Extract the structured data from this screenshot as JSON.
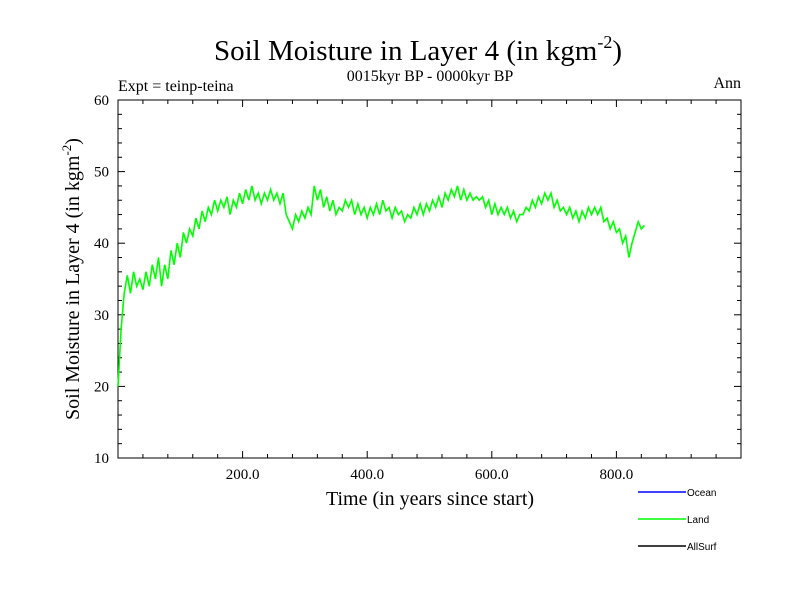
{
  "chart_data": {
    "type": "line",
    "title": "Soil Moisture in Layer 4 (in kgm",
    "title_exponent": "-2",
    "title_close": ")",
    "subtitle": "0015kyr BP - 0000kyr BP",
    "experiment_label": "Expt = teinp-teina",
    "season_label": "Ann",
    "xlabel": "Time (in years since start)",
    "ylabel": "Soil Moisture in Layer 4 (in kgm",
    "ylabel_exponent": "-2",
    "ylabel_close": ")",
    "xlim": [
      0,
      1000
    ],
    "ylim": [
      10,
      60
    ],
    "x_ticks": [
      200,
      400,
      600,
      800
    ],
    "x_tick_labels": [
      "200.0",
      "400.0",
      "600.0",
      "800.0"
    ],
    "y_ticks": [
      10,
      20,
      30,
      40,
      50,
      60
    ],
    "y_tick_labels": [
      "10",
      "20",
      "30",
      "40",
      "50",
      "60"
    ],
    "grid": false,
    "legend_position": "bottom-right",
    "legend": [
      {
        "name": "Ocean",
        "color": "#0000ff"
      },
      {
        "name": "Land",
        "color": "#00ff00"
      },
      {
        "name": "AllSurf",
        "color": "#000000"
      }
    ],
    "series": [
      {
        "name": "Land",
        "color": "#00ff00",
        "x_start": 0,
        "x_step": 5,
        "values": [
          20,
          28,
          33,
          35.5,
          33,
          36,
          34,
          35,
          33.5,
          36,
          34,
          37,
          35,
          38,
          34,
          37,
          35,
          39,
          37,
          40,
          38,
          41.5,
          40,
          42,
          41,
          43.5,
          42,
          44.5,
          43,
          45,
          44,
          46,
          44.5,
          46,
          45,
          46.5,
          44,
          46,
          45,
          47,
          45.5,
          47.5,
          46,
          48,
          46,
          47,
          45.5,
          47,
          46,
          47.5,
          46,
          47,
          45.5,
          47,
          44,
          43,
          42,
          44,
          43,
          44.5,
          43.5,
          45,
          44,
          48,
          46,
          47.5,
          45,
          46.5,
          44.5,
          46,
          44,
          45,
          44.5,
          46,
          45,
          46,
          44,
          45.5,
          44,
          45,
          43.5,
          45,
          44,
          45.5,
          44,
          46,
          44.5,
          45,
          43.5,
          45,
          44,
          44.5,
          43,
          44,
          43.5,
          45,
          44,
          45.5,
          44,
          45.5,
          44.5,
          46,
          45,
          46.5,
          45,
          47,
          46,
          47.5,
          46.5,
          48,
          46,
          47.5,
          46,
          47,
          46,
          46.5,
          46,
          46.5,
          45,
          46,
          44,
          45.5,
          44,
          45,
          44,
          45,
          43.5,
          44.5,
          43,
          44,
          44,
          45,
          44.5,
          46,
          45,
          46.5,
          45.5,
          47,
          46,
          47,
          45,
          46,
          44.5,
          45,
          44,
          45,
          43.5,
          44.5,
          43,
          44.5,
          43.5,
          45,
          44,
          45,
          44,
          45,
          43,
          43.5,
          42,
          43,
          41.5,
          42,
          40,
          41,
          38,
          40,
          41.5,
          43,
          42,
          42.5
        ]
      }
    ]
  }
}
